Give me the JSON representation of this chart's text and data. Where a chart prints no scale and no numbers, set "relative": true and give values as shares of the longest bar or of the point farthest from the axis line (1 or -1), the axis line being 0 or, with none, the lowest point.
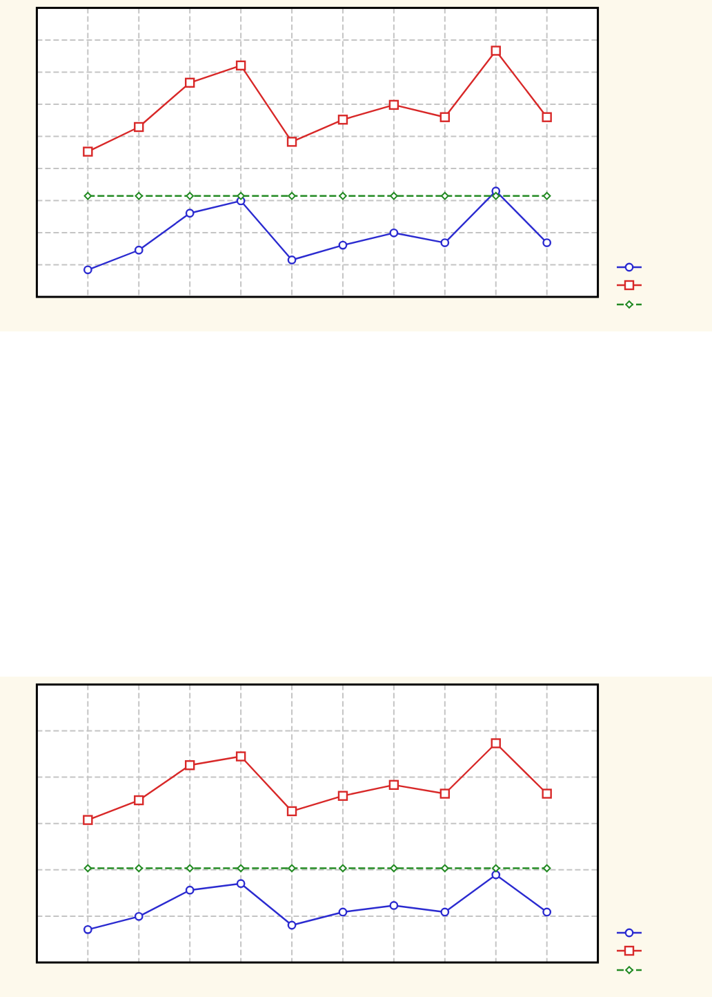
{
  "chart_data": [
    {
      "type": "line",
      "relative": true,
      "categories": [
        null,
        null,
        null,
        null,
        null,
        null,
        null,
        null,
        null,
        null
      ],
      "grid": true,
      "series": [
        {
          "color": "#2b2bd0",
          "marker": "circle",
          "values": [
            0.11,
            0.19,
            0.34,
            0.39,
            0.15,
            0.21,
            0.26,
            0.22,
            0.43,
            0.22
          ]
        },
        {
          "color": "#d82828",
          "marker": "square",
          "values": [
            0.59,
            0.69,
            0.87,
            0.94,
            0.63,
            0.72,
            0.78,
            0.73,
            1,
            0.73
          ]
        },
        {
          "color": "#238a23",
          "marker": "diamond",
          "line_style": "dashed",
          "values": [
            0.41,
            0.41,
            0.41,
            0.41,
            0.41,
            0.41,
            0.41,
            0.41,
            0.41,
            0.41
          ]
        }
      ]
    },
    {
      "type": "line",
      "relative": true,
      "categories": [
        null,
        null,
        null,
        null,
        null,
        null,
        null,
        null,
        null,
        null
      ],
      "grid": true,
      "series": [
        {
          "color": "#2b2bd0",
          "marker": "circle",
          "values": [
            0.15,
            0.21,
            0.33,
            0.36,
            0.17,
            0.23,
            0.26,
            0.23,
            0.4,
            0.23
          ]
        },
        {
          "color": "#d82828",
          "marker": "square",
          "values": [
            0.65,
            0.74,
            0.9,
            0.94,
            0.69,
            0.76,
            0.81,
            0.77,
            1,
            0.77
          ]
        },
        {
          "color": "#238a23",
          "marker": "diamond",
          "line_style": "dashed",
          "values": [
            0.43,
            0.43,
            0.43,
            0.43,
            0.43,
            0.43,
            0.43,
            0.43,
            0.43,
            0.43
          ]
        }
      ]
    }
  ]
}
